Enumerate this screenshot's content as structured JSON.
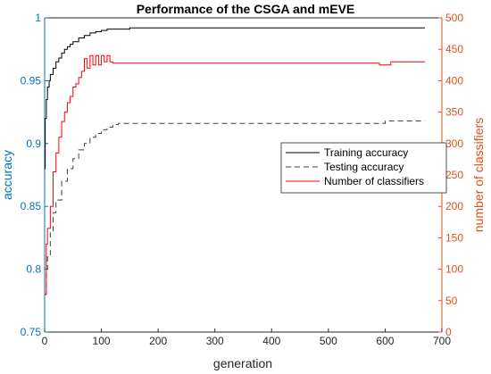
{
  "chart_data": {
    "type": "line",
    "title": "Performance of the CSGA and mEVE",
    "xlabel": "generation",
    "ylabel_left": "accuracy",
    "ylabel_right": "number of classifiers",
    "xlim": [
      0,
      700
    ],
    "ylim_left": [
      0.75,
      1
    ],
    "ylim_right": [
      0,
      500
    ],
    "x_ticks": [
      "0",
      "100",
      "200",
      "300",
      "400",
      "500",
      "600",
      "700"
    ],
    "y_left_ticks": [
      "0.75",
      "0.8",
      "0.85",
      "0.9",
      "0.95",
      "1"
    ],
    "y_right_ticks": [
      "0",
      "50",
      "100",
      "150",
      "200",
      "250",
      "300",
      "350",
      "400",
      "450",
      "500"
    ],
    "grid": false,
    "legend_position": "right",
    "colors": {
      "left_axis": "#0072BD",
      "right_axis": "#D95319",
      "training": "#000000",
      "testing": "#404040",
      "classifiers": "#FF0000"
    },
    "series": [
      {
        "name": "Training accuracy",
        "axis": "left",
        "style": "solid",
        "x": [
          0,
          1,
          3,
          5,
          8,
          10,
          15,
          20,
          25,
          30,
          35,
          40,
          45,
          50,
          60,
          70,
          80,
          90,
          100,
          110,
          120,
          150,
          200,
          300,
          400,
          500,
          600,
          650,
          670
        ],
        "y": [
          0.88,
          0.92,
          0.935,
          0.945,
          0.95,
          0.955,
          0.96,
          0.965,
          0.968,
          0.972,
          0.975,
          0.977,
          0.979,
          0.981,
          0.984,
          0.986,
          0.988,
          0.989,
          0.99,
          0.991,
          0.991,
          0.992,
          0.992,
          0.992,
          0.992,
          0.992,
          0.992,
          0.992,
          0.992
        ]
      },
      {
        "name": "Testing accuracy",
        "axis": "left",
        "style": "dashed",
        "x": [
          0,
          3,
          5,
          10,
          15,
          20,
          30,
          40,
          50,
          60,
          70,
          80,
          90,
          100,
          110,
          120,
          130,
          150,
          200,
          300,
          400,
          500,
          580,
          600,
          650,
          670
        ],
        "y": [
          0.78,
          0.8,
          0.81,
          0.83,
          0.845,
          0.855,
          0.87,
          0.88,
          0.888,
          0.895,
          0.9,
          0.905,
          0.908,
          0.911,
          0.913,
          0.915,
          0.916,
          0.916,
          0.916,
          0.916,
          0.916,
          0.916,
          0.916,
          0.918,
          0.918,
          0.918
        ]
      },
      {
        "name": "Number of classifiers",
        "axis": "right",
        "style": "solid",
        "x": [
          0,
          3,
          5,
          10,
          15,
          20,
          25,
          30,
          35,
          40,
          45,
          50,
          55,
          60,
          65,
          70,
          75,
          80,
          85,
          90,
          95,
          100,
          105,
          110,
          115,
          120,
          130,
          150,
          200,
          300,
          400,
          500,
          580,
          590,
          600,
          610,
          650,
          670
        ],
        "y": [
          60,
          140,
          165,
          200,
          255,
          285,
          310,
          335,
          350,
          365,
          375,
          390,
          395,
          405,
          415,
          435,
          420,
          440,
          425,
          440,
          425,
          440,
          430,
          440,
          430,
          428,
          428,
          428,
          428,
          428,
          428,
          428,
          428,
          425,
          425,
          430,
          430,
          430
        ]
      }
    ]
  }
}
